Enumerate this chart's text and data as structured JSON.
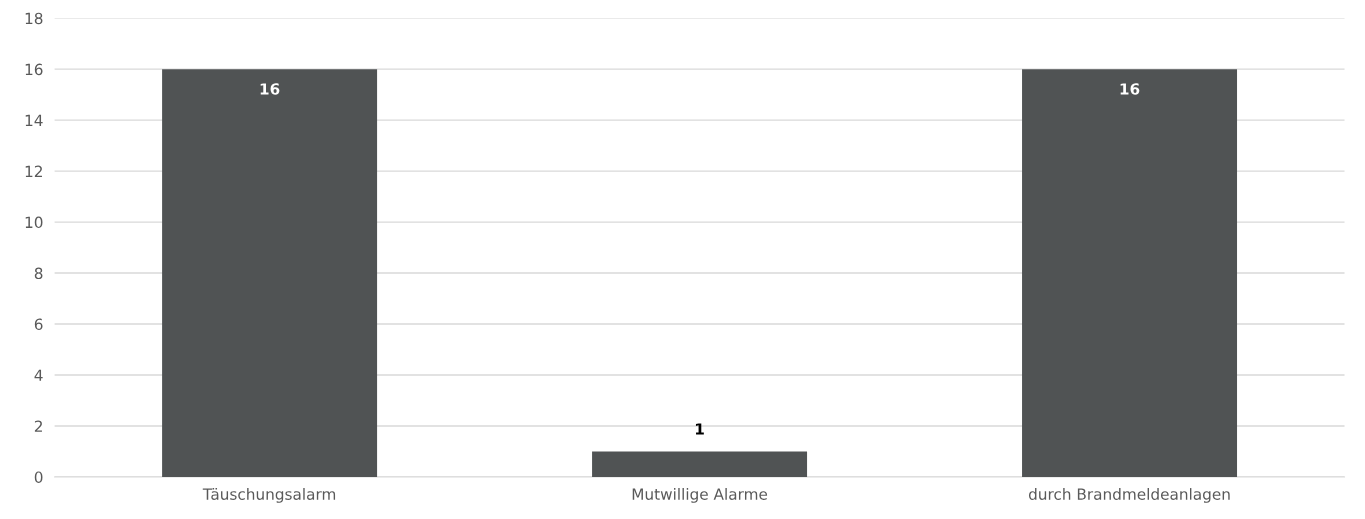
{
  "chart_data": {
    "type": "bar",
    "categories": [
      "Täuschungsalarm",
      "Mutwillige Alarme",
      "durch Brandmeldeanlagen"
    ],
    "values": [
      16,
      1,
      16
    ],
    "color": "#505354",
    "ylim": [
      0,
      18
    ],
    "yticks": [
      0,
      2,
      4,
      6,
      8,
      10,
      12,
      14,
      16,
      18
    ],
    "grid": "y",
    "data_labels": true
  }
}
